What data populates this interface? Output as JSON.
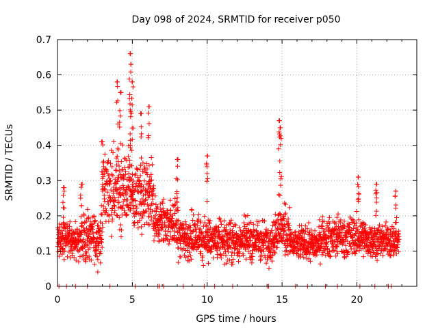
{
  "chart_data": {
    "type": "scatter",
    "title": "Day 098 of 2024, SRMTID for receiver p050",
    "xlabel": "GPS time / hours",
    "ylabel": "SRMTID / TECUs",
    "xlim": [
      0,
      24
    ],
    "ylim": [
      0,
      0.7
    ],
    "xticks": [
      0,
      5,
      10,
      15,
      20
    ],
    "xtick_labels": [
      "0",
      "5",
      "10",
      "15",
      "20"
    ],
    "yticks": [
      0,
      0.1,
      0.2,
      0.3,
      0.4,
      0.5,
      0.6,
      0.7
    ],
    "ytick_labels": [
      "0",
      "0.1",
      "0.2",
      "0.3",
      "0.4",
      "0.5",
      "0.6",
      "0.7"
    ],
    "grid": true,
    "marker": "+",
    "color": "#ff0000",
    "sample_step_hours": 0.02,
    "series_profile": [
      {
        "from": 0.0,
        "to": 1.7,
        "center": 0.13,
        "spread": 0.05
      },
      {
        "from": 1.7,
        "to": 3.0,
        "center": 0.14,
        "spread": 0.06
      },
      {
        "from": 3.0,
        "to": 5.0,
        "center": 0.28,
        "spread": 0.1
      },
      {
        "from": 5.0,
        "to": 6.4,
        "center": 0.25,
        "spread": 0.09
      },
      {
        "from": 6.4,
        "to": 8.0,
        "center": 0.18,
        "spread": 0.06
      },
      {
        "from": 8.0,
        "to": 10.0,
        "center": 0.14,
        "spread": 0.06
      },
      {
        "from": 10.0,
        "to": 12.5,
        "center": 0.13,
        "spread": 0.05
      },
      {
        "from": 12.5,
        "to": 14.5,
        "center": 0.13,
        "spread": 0.05
      },
      {
        "from": 14.5,
        "to": 15.5,
        "center": 0.16,
        "spread": 0.06
      },
      {
        "from": 15.5,
        "to": 17.5,
        "center": 0.12,
        "spread": 0.04
      },
      {
        "from": 17.5,
        "to": 20.5,
        "center": 0.14,
        "spread": 0.05
      },
      {
        "from": 20.5,
        "to": 22.8,
        "center": 0.13,
        "spread": 0.04
      }
    ],
    "spikes": [
      {
        "x": 0.4,
        "y": 0.28
      },
      {
        "x": 1.6,
        "y": 0.29
      },
      {
        "x": 3.0,
        "y": 0.41
      },
      {
        "x": 4.0,
        "y": 0.58
      },
      {
        "x": 4.2,
        "y": 0.55
      },
      {
        "x": 4.85,
        "y": 0.66
      },
      {
        "x": 4.9,
        "y": 0.63
      },
      {
        "x": 5.0,
        "y": 0.58
      },
      {
        "x": 5.6,
        "y": 0.49
      },
      {
        "x": 6.1,
        "y": 0.51
      },
      {
        "x": 8.0,
        "y": 0.36
      },
      {
        "x": 10.0,
        "y": 0.37
      },
      {
        "x": 14.8,
        "y": 0.47
      },
      {
        "x": 14.9,
        "y": 0.45
      },
      {
        "x": 20.1,
        "y": 0.31
      },
      {
        "x": 21.3,
        "y": 0.29
      },
      {
        "x": 22.6,
        "y": 0.27
      }
    ],
    "zero_markers_x": [
      0.1,
      0.6,
      1.2,
      2.0,
      3.5,
      5.2,
      6.7,
      6.8,
      7.1,
      8.4,
      9.8,
      10.5,
      11.7,
      14.0,
      14.1,
      15.9,
      16.7,
      17.9,
      18.7,
      20.2,
      21.2,
      22.1,
      22.3
    ]
  }
}
